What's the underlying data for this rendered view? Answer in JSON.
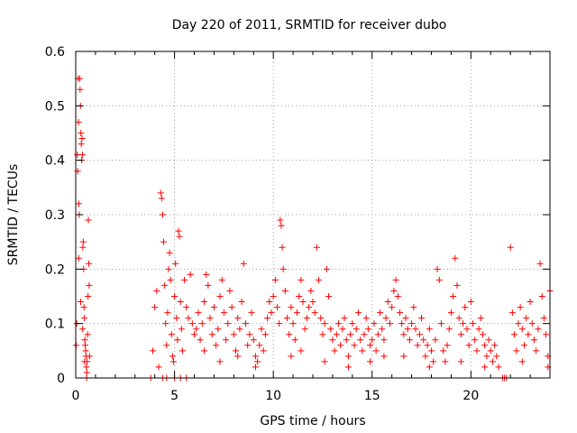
{
  "chart_data": {
    "type": "scatter",
    "title": "Day 220 of 2011, SRMTID for receiver dubo",
    "xlabel": "GPS time / hours",
    "ylabel": "SRMTID / TECUs",
    "xlim": [
      0,
      24
    ],
    "ylim": [
      0,
      0.6
    ],
    "xticks": [
      0,
      5,
      10,
      15,
      20
    ],
    "yticks": [
      0,
      0.1,
      0.2,
      0.3,
      0.4,
      0.5,
      0.6
    ],
    "xtick_labels": [
      "0",
      "5",
      "10",
      "15",
      "20"
    ],
    "ytick_labels": [
      "0",
      "0.1",
      "0.2",
      "0.3",
      "0.4",
      "0.5",
      "0.6"
    ],
    "grid": true,
    "marker": "+",
    "marker_color": "#ff0000",
    "series": [
      {
        "name": "SRMTID",
        "points": [
          [
            0.02,
            0.06
          ],
          [
            0.05,
            0.1
          ],
          [
            0.08,
            0.41
          ],
          [
            0.1,
            0.38
          ],
          [
            0.12,
            0.55
          ],
          [
            0.14,
            0.47
          ],
          [
            0.16,
            0.32
          ],
          [
            0.18,
            0.3
          ],
          [
            0.2,
            0.55
          ],
          [
            0.22,
            0.53
          ],
          [
            0.24,
            0.5
          ],
          [
            0.26,
            0.45
          ],
          [
            0.28,
            0.43
          ],
          [
            0.3,
            0.4
          ],
          [
            0.32,
            0.44
          ],
          [
            0.34,
            0.41
          ],
          [
            0.36,
            0.24
          ],
          [
            0.38,
            0.25
          ],
          [
            0.4,
            0.2
          ],
          [
            0.42,
            0.13
          ],
          [
            0.44,
            0.11
          ],
          [
            0.46,
            0.07
          ],
          [
            0.48,
            0.06
          ],
          [
            0.5,
            0.05
          ],
          [
            0.52,
            0.04
          ],
          [
            0.54,
            0.02
          ],
          [
            0.56,
            0.01
          ],
          [
            0.58,
            0.03
          ],
          [
            0.6,
            0.08
          ],
          [
            0.62,
            0.15
          ],
          [
            0.64,
            0.29
          ],
          [
            0.66,
            0.21
          ],
          [
            0.68,
            0.17
          ],
          [
            0.7,
            0.04
          ],
          [
            0.15,
            0.22
          ],
          [
            0.25,
            0.14
          ],
          [
            0.35,
            0.09
          ],
          [
            0.45,
            0.03
          ],
          [
            0.55,
            0.0
          ],
          [
            3.8,
            0.0
          ],
          [
            3.9,
            0.05
          ],
          [
            4.0,
            0.13
          ],
          [
            4.1,
            0.16
          ],
          [
            4.2,
            0.02
          ],
          [
            4.3,
            0.34
          ],
          [
            4.35,
            0.33
          ],
          [
            4.4,
            0.3
          ],
          [
            4.45,
            0.25
          ],
          [
            4.5,
            0.17
          ],
          [
            4.55,
            0.1
          ],
          [
            4.6,
            0.06
          ],
          [
            4.65,
            0.12
          ],
          [
            4.7,
            0.2
          ],
          [
            4.75,
            0.23
          ],
          [
            4.8,
            0.18
          ],
          [
            4.85,
            0.08
          ],
          [
            4.9,
            0.04
          ],
          [
            4.95,
            0.03
          ],
          [
            5.0,
            0.15
          ],
          [
            5.05,
            0.21
          ],
          [
            5.1,
            0.11
          ],
          [
            5.15,
            0.07
          ],
          [
            5.2,
            0.27
          ],
          [
            5.25,
            0.26
          ],
          [
            5.3,
            0.14
          ],
          [
            5.35,
            0.09
          ],
          [
            5.4,
            0.05
          ],
          [
            5.5,
            0.18
          ],
          [
            5.6,
            0.13
          ],
          [
            5.7,
            0.11
          ],
          [
            5.8,
            0.19
          ],
          [
            5.9,
            0.1
          ],
          [
            6.0,
            0.08
          ],
          [
            4.4,
            0.0
          ],
          [
            4.6,
            0.0
          ],
          [
            5.0,
            0.0
          ],
          [
            5.3,
            0.0
          ],
          [
            5.6,
            0.0
          ],
          [
            6.1,
            0.09
          ],
          [
            6.2,
            0.12
          ],
          [
            6.3,
            0.07
          ],
          [
            6.4,
            0.1
          ],
          [
            6.5,
            0.14
          ],
          [
            6.6,
            0.19
          ],
          [
            6.7,
            0.17
          ],
          [
            6.8,
            0.11
          ],
          [
            6.9,
            0.08
          ],
          [
            7.0,
            0.13
          ],
          [
            7.1,
            0.06
          ],
          [
            7.2,
            0.09
          ],
          [
            7.3,
            0.15
          ],
          [
            7.4,
            0.18
          ],
          [
            7.5,
            0.12
          ],
          [
            7.6,
            0.07
          ],
          [
            7.7,
            0.1
          ],
          [
            7.8,
            0.16
          ],
          [
            7.9,
            0.13
          ],
          [
            8.0,
            0.08
          ],
          [
            8.1,
            0.05
          ],
          [
            8.2,
            0.11
          ],
          [
            8.3,
            0.09
          ],
          [
            8.4,
            0.14
          ],
          [
            8.5,
            0.21
          ],
          [
            8.6,
            0.1
          ],
          [
            8.7,
            0.06
          ],
          [
            8.8,
            0.08
          ],
          [
            8.9,
            0.12
          ],
          [
            9.0,
            0.07
          ],
          [
            9.1,
            0.04
          ],
          [
            9.2,
            0.03
          ],
          [
            9.3,
            0.06
          ],
          [
            9.4,
            0.09
          ],
          [
            9.5,
            0.05
          ],
          [
            9.6,
            0.08
          ],
          [
            9.7,
            0.11
          ],
          [
            9.8,
            0.14
          ],
          [
            9.9,
            0.12
          ],
          [
            10.0,
            0.15
          ],
          [
            10.1,
            0.18
          ],
          [
            10.2,
            0.13
          ],
          [
            10.3,
            0.1
          ],
          [
            10.35,
            0.29
          ],
          [
            10.4,
            0.28
          ],
          [
            10.45,
            0.24
          ],
          [
            10.5,
            0.2
          ],
          [
            10.6,
            0.16
          ],
          [
            10.7,
            0.11
          ],
          [
            10.8,
            0.08
          ],
          [
            10.9,
            0.13
          ],
          [
            11.0,
            0.1
          ],
          [
            11.1,
            0.07
          ],
          [
            11.2,
            0.12
          ],
          [
            11.3,
            0.15
          ],
          [
            11.4,
            0.18
          ],
          [
            11.5,
            0.14
          ],
          [
            11.6,
            0.09
          ],
          [
            11.7,
            0.11
          ],
          [
            11.8,
            0.13
          ],
          [
            11.9,
            0.16
          ],
          [
            12.0,
            0.14
          ],
          [
            12.1,
            0.12
          ],
          [
            12.2,
            0.24
          ],
          [
            12.3,
            0.18
          ],
          [
            12.4,
            0.11
          ],
          [
            12.5,
            0.08
          ],
          [
            12.6,
            0.1
          ],
          [
            12.7,
            0.2
          ],
          [
            12.8,
            0.15
          ],
          [
            12.9,
            0.09
          ],
          [
            13.0,
            0.07
          ],
          [
            13.1,
            0.05
          ],
          [
            13.2,
            0.08
          ],
          [
            13.3,
            0.1
          ],
          [
            13.4,
            0.06
          ],
          [
            13.5,
            0.09
          ],
          [
            13.6,
            0.11
          ],
          [
            13.7,
            0.07
          ],
          [
            13.8,
            0.04
          ],
          [
            13.9,
            0.08
          ],
          [
            14.0,
            0.1
          ],
          [
            14.1,
            0.06
          ],
          [
            14.2,
            0.09
          ],
          [
            14.3,
            0.12
          ],
          [
            14.4,
            0.07
          ],
          [
            14.5,
            0.05
          ],
          [
            14.6,
            0.08
          ],
          [
            14.7,
            0.11
          ],
          [
            14.8,
            0.09
          ],
          [
            14.9,
            0.06
          ],
          [
            15.0,
            0.07
          ],
          [
            15.1,
            0.1
          ],
          [
            15.2,
            0.05
          ],
          [
            15.3,
            0.08
          ],
          [
            15.4,
            0.12
          ],
          [
            15.5,
            0.09
          ],
          [
            15.6,
            0.07
          ],
          [
            15.7,
            0.11
          ],
          [
            15.8,
            0.14
          ],
          [
            15.9,
            0.1
          ],
          [
            16.0,
            0.13
          ],
          [
            16.1,
            0.16
          ],
          [
            16.2,
            0.18
          ],
          [
            16.3,
            0.15
          ],
          [
            16.4,
            0.12
          ],
          [
            16.5,
            0.1
          ],
          [
            16.6,
            0.08
          ],
          [
            16.7,
            0.11
          ],
          [
            16.8,
            0.09
          ],
          [
            16.9,
            0.07
          ],
          [
            17.0,
            0.1
          ],
          [
            17.1,
            0.13
          ],
          [
            17.2,
            0.09
          ],
          [
            17.3,
            0.06
          ],
          [
            17.4,
            0.08
          ],
          [
            17.5,
            0.11
          ],
          [
            17.6,
            0.07
          ],
          [
            17.7,
            0.04
          ],
          [
            17.8,
            0.06
          ],
          [
            17.9,
            0.09
          ],
          [
            18.0,
            0.05
          ],
          [
            18.1,
            0.03
          ],
          [
            18.2,
            0.07
          ],
          [
            18.3,
            0.2
          ],
          [
            18.4,
            0.18
          ],
          [
            18.5,
            0.1
          ],
          [
            18.6,
            0.05
          ],
          [
            18.7,
            0.03
          ],
          [
            18.8,
            0.06
          ],
          [
            18.9,
            0.09
          ],
          [
            19.0,
            0.12
          ],
          [
            19.1,
            0.15
          ],
          [
            19.2,
            0.22
          ],
          [
            19.3,
            0.17
          ],
          [
            19.4,
            0.11
          ],
          [
            19.5,
            0.08
          ],
          [
            19.6,
            0.1
          ],
          [
            19.7,
            0.13
          ],
          [
            19.8,
            0.09
          ],
          [
            19.9,
            0.06
          ],
          [
            20.0,
            0.14
          ],
          [
            20.1,
            0.1
          ],
          [
            20.2,
            0.07
          ],
          [
            20.3,
            0.05
          ],
          [
            20.4,
            0.09
          ],
          [
            20.5,
            0.11
          ],
          [
            20.6,
            0.08
          ],
          [
            20.7,
            0.06
          ],
          [
            20.8,
            0.04
          ],
          [
            20.9,
            0.07
          ],
          [
            21.0,
            0.05
          ],
          [
            21.1,
            0.03
          ],
          [
            21.2,
            0.06
          ],
          [
            21.3,
            0.04
          ],
          [
            21.4,
            0.02
          ],
          [
            21.6,
            0.0
          ],
          [
            21.7,
            0.0
          ],
          [
            21.8,
            0.0
          ],
          [
            22.0,
            0.24
          ],
          [
            22.1,
            0.12
          ],
          [
            22.2,
            0.08
          ],
          [
            22.3,
            0.05
          ],
          [
            22.4,
            0.1
          ],
          [
            22.5,
            0.13
          ],
          [
            22.6,
            0.09
          ],
          [
            22.7,
            0.06
          ],
          [
            22.8,
            0.11
          ],
          [
            22.9,
            0.08
          ],
          [
            23.0,
            0.14
          ],
          [
            23.1,
            0.1
          ],
          [
            23.2,
            0.07
          ],
          [
            23.3,
            0.05
          ],
          [
            23.4,
            0.09
          ],
          [
            23.5,
            0.21
          ],
          [
            23.6,
            0.15
          ],
          [
            23.7,
            0.11
          ],
          [
            23.8,
            0.08
          ],
          [
            23.9,
            0.04
          ],
          [
            24.0,
            0.16
          ],
          [
            6.5,
            0.05
          ],
          [
            7.3,
            0.03
          ],
          [
            8.2,
            0.04
          ],
          [
            9.1,
            0.02
          ],
          [
            10.9,
            0.04
          ],
          [
            12.6,
            0.03
          ],
          [
            13.8,
            0.02
          ],
          [
            14.9,
            0.03
          ],
          [
            16.6,
            0.04
          ],
          [
            17.9,
            0.02
          ],
          [
            19.5,
            0.03
          ],
          [
            20.7,
            0.02
          ],
          [
            22.6,
            0.03
          ],
          [
            23.9,
            0.02
          ],
          [
            11.4,
            0.05
          ],
          [
            15.6,
            0.04
          ]
        ]
      }
    ]
  }
}
